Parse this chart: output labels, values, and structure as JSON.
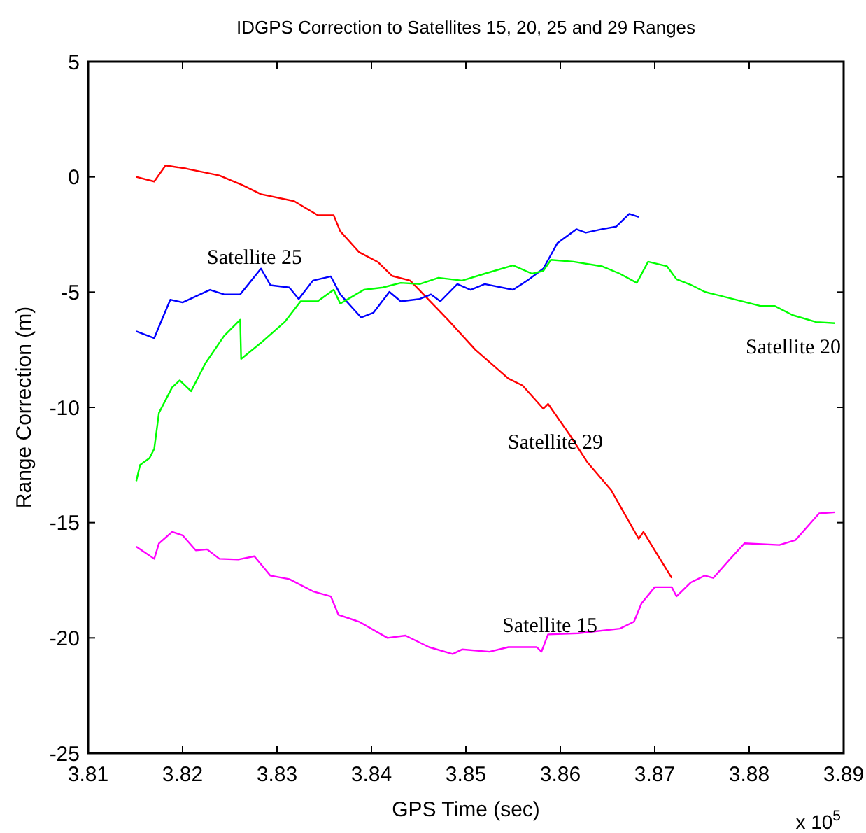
{
  "chart_data": {
    "type": "line",
    "title": "IDGPS Correction to Satellites 15, 20, 25 and 29 Ranges",
    "xlabel": "GPS Time (sec)",
    "ylabel": "Range Correction (m)",
    "xlim": [
      3.81,
      3.89
    ],
    "xticks": [
      {
        "value": 3.81,
        "label": "3.81"
      },
      {
        "value": 3.82,
        "label": "3.82"
      },
      {
        "value": 3.83,
        "label": "3.83"
      },
      {
        "value": 3.84,
        "label": "3.84"
      },
      {
        "value": 3.85,
        "label": "3.85"
      },
      {
        "value": 3.86,
        "label": "3.86"
      },
      {
        "value": 3.87,
        "label": "3.87"
      },
      {
        "value": 3.88,
        "label": "3.88"
      },
      {
        "value": 3.89,
        "label": "3.89"
      }
    ],
    "ylim": [
      -25,
      5
    ],
    "yticks": [
      -25,
      -20,
      -15,
      -10,
      -5,
      0,
      5
    ],
    "grid": false,
    "series": [
      {
        "name": "Satellite 29",
        "color": "#ff0000",
        "x": [
          3.8151,
          3.817,
          3.8182,
          3.8204,
          3.8239,
          3.8263,
          3.8283,
          3.8318,
          3.8343,
          3.836,
          3.8367,
          3.8387,
          3.8407,
          3.8422,
          3.8441,
          3.8481,
          3.851,
          3.8545,
          3.856,
          3.8582,
          3.8587,
          3.861,
          3.8629,
          3.8654,
          3.8683,
          3.8688,
          3.8703,
          3.8718
        ],
        "values": [
          0,
          -0.2,
          0.5,
          0.36,
          0.06,
          -0.35,
          -0.75,
          -1.05,
          -1.66,
          -1.66,
          -2.36,
          -3.27,
          -3.7,
          -4.3,
          -4.5,
          -6.2,
          -7.5,
          -8.75,
          -9.05,
          -10.06,
          -9.85,
          -11.2,
          -12.4,
          -13.6,
          -15.7,
          -15.4,
          -16.4,
          -17.4
        ]
      },
      {
        "name": "Satellite 25",
        "color": "#0000ff",
        "x": [
          3.8151,
          3.817,
          3.8175,
          3.8187,
          3.82,
          3.8229,
          3.8244,
          3.8261,
          3.8283,
          3.8293,
          3.8313,
          3.8323,
          3.8338,
          3.8357,
          3.8367,
          3.8389,
          3.8402,
          3.8419,
          3.8431,
          3.8451,
          3.8463,
          3.8473,
          3.8491,
          3.8505,
          3.852,
          3.855,
          3.8565,
          3.8582,
          3.8597,
          3.8617,
          3.8627,
          3.8644,
          3.8659,
          3.8673,
          3.8683
        ],
        "values": [
          -6.7,
          -7.0,
          -6.5,
          -5.33,
          -5.45,
          -4.9,
          -5.1,
          -5.1,
          -3.98,
          -4.7,
          -4.8,
          -5.3,
          -4.5,
          -4.32,
          -5.1,
          -6.1,
          -5.9,
          -4.99,
          -5.4,
          -5.3,
          -5.1,
          -5.4,
          -4.65,
          -4.9,
          -4.65,
          -4.9,
          -4.5,
          -3.98,
          -2.87,
          -2.27,
          -2.42,
          -2.27,
          -2.16,
          -1.6,
          -1.74
        ]
      },
      {
        "name": "Satellite 20",
        "color": "#00ff00",
        "x": [
          3.8151,
          3.8155,
          3.8165,
          3.817,
          3.8174,
          3.8175,
          3.8189,
          3.8197,
          3.8209,
          3.8224,
          3.8244,
          3.8261,
          3.8262,
          3.8283,
          3.8308,
          3.8325,
          3.8343,
          3.836,
          3.8367,
          3.8392,
          3.8412,
          3.8431,
          3.8451,
          3.8471,
          3.8496,
          3.852,
          3.855,
          3.857,
          3.8582,
          3.859,
          3.8614,
          3.8644,
          3.8663,
          3.8681,
          3.8693,
          3.8713,
          3.8723,
          3.8738,
          3.8753,
          3.8782,
          3.8812,
          3.8827,
          3.8846,
          3.8871,
          3.8891
        ],
        "values": [
          -13.2,
          -12.5,
          -12.2,
          -11.8,
          -10.55,
          -10.24,
          -9.13,
          -8.83,
          -9.3,
          -8.1,
          -6.9,
          -6.2,
          -7.9,
          -7.2,
          -6.3,
          -5.4,
          -5.4,
          -4.9,
          -5.5,
          -4.9,
          -4.8,
          -4.6,
          -4.65,
          -4.38,
          -4.5,
          -4.2,
          -3.84,
          -4.2,
          -4.08,
          -3.6,
          -3.68,
          -3.88,
          -4.2,
          -4.6,
          -3.68,
          -3.88,
          -4.44,
          -4.68,
          -4.99,
          -5.29,
          -5.6,
          -5.6,
          -6.0,
          -6.3,
          -6.35
        ]
      },
      {
        "name": "Satellite 15",
        "color": "#ff00ff",
        "x": [
          3.8151,
          3.817,
          3.8175,
          3.8189,
          3.82,
          3.8214,
          3.8226,
          3.8239,
          3.8259,
          3.8276,
          3.8293,
          3.8313,
          3.8338,
          3.8357,
          3.8365,
          3.8387,
          3.8417,
          3.8436,
          3.8461,
          3.8486,
          3.8496,
          3.8525,
          3.8545,
          3.8575,
          3.858,
          3.8587,
          3.8619,
          3.8663,
          3.8678,
          3.8686,
          3.87,
          3.8718,
          3.8723,
          3.8738,
          3.8753,
          3.8762,
          3.878,
          3.8795,
          3.8832,
          3.8849,
          3.8874,
          3.8891
        ],
        "values": [
          -16.04,
          -16.57,
          -15.9,
          -15.4,
          -15.55,
          -16.2,
          -16.16,
          -16.57,
          -16.6,
          -16.46,
          -17.3,
          -17.45,
          -17.98,
          -18.2,
          -19.0,
          -19.3,
          -20.0,
          -19.9,
          -20.4,
          -20.7,
          -20.5,
          -20.6,
          -20.4,
          -20.4,
          -20.6,
          -19.85,
          -19.8,
          -19.6,
          -19.3,
          -18.5,
          -17.8,
          -17.8,
          -18.2,
          -17.6,
          -17.3,
          -17.4,
          -16.57,
          -15.9,
          -15.97,
          -15.76,
          -14.6,
          -14.55
        ]
      }
    ],
    "annotations": [
      "x 10$^{5}$"
    ]
  }
}
